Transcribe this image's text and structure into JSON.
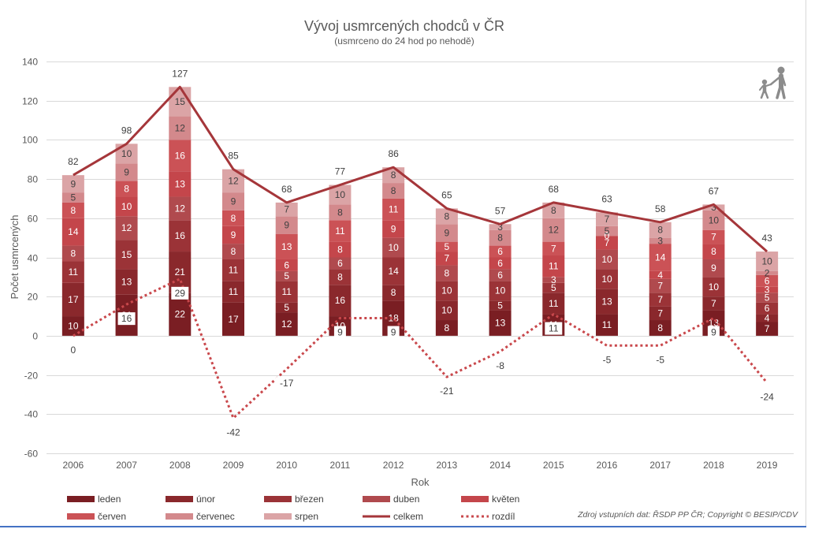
{
  "chart_data": {
    "type": "bar",
    "stacked": true,
    "title": "Vývoj usmrcených chodců v ČR",
    "subtitle": "(usmrceno do 24 hod po nehodě)",
    "xlabel": "Rok",
    "ylabel": "Počet usmrcených",
    "ylim": [
      -60,
      140
    ],
    "yticks": [
      -60,
      -40,
      -20,
      0,
      20,
      40,
      60,
      80,
      100,
      120,
      140
    ],
    "grid": true,
    "legend_position": "bottom",
    "data_labels": true,
    "categories": [
      "2006",
      "2007",
      "2008",
      "2009",
      "2010",
      "2011",
      "2012",
      "2013",
      "2014",
      "2015",
      "2016",
      "2017",
      "2018",
      "2019"
    ],
    "series": [
      {
        "name": "leden",
        "color": "#7a1e23",
        "values": [
          10,
          21,
          22,
          17,
          12,
          10,
          18,
          8,
          13,
          11,
          11,
          8,
          13,
          7
        ]
      },
      {
        "name": "únor",
        "color": "#8a282c",
        "values": [
          17,
          13,
          21,
          11,
          5,
          16,
          8,
          10,
          5,
          11,
          13,
          7,
          7,
          4
        ]
      },
      {
        "name": "březen",
        "color": "#9b3337",
        "values": [
          11,
          15,
          16,
          11,
          11,
          8,
          14,
          10,
          10,
          5,
          10,
          7,
          10,
          6
        ]
      },
      {
        "name": "duben",
        "color": "#b04a4e",
        "values": [
          8,
          12,
          12,
          8,
          5,
          6,
          10,
          8,
          6,
          3,
          10,
          7,
          9,
          5
        ]
      },
      {
        "name": "květen",
        "color": "#c4464b",
        "values": [
          14,
          10,
          13,
          9,
          6,
          8,
          9,
          7,
          6,
          11,
          7,
          4,
          8,
          3
        ]
      },
      {
        "name": "červen",
        "color": "#cb5256",
        "values": [
          8,
          8,
          16,
          8,
          13,
          11,
          11,
          5,
          6,
          7,
          0,
          14,
          7,
          6
        ]
      },
      {
        "name": "červenec",
        "color": "#d3898c",
        "values": [
          5,
          9,
          12,
          9,
          9,
          8,
          8,
          9,
          8,
          12,
          5,
          3,
          10,
          2
        ]
      },
      {
        "name": "srpen",
        "color": "#dba4a6",
        "values": [
          9,
          10,
          15,
          12,
          7,
          10,
          8,
          8,
          3,
          8,
          7,
          8,
          3,
          10
        ]
      }
    ],
    "lines": [
      {
        "name": "celkem",
        "style": "solid",
        "color": "#a5363a",
        "values": [
          82,
          98,
          127,
          85,
          68,
          77,
          86,
          65,
          57,
          68,
          63,
          58,
          67,
          43
        ]
      },
      {
        "name": "rozdíl",
        "style": "dotted",
        "color": "#c9484c",
        "values": [
          0,
          16,
          29,
          -42,
          -17,
          9,
          9,
          -21,
          -8,
          11,
          -5,
          -5,
          9,
          -24
        ]
      }
    ],
    "source": "Zdroj vstupních dat: ŘSDP PP ČR; Copyright © BESIP/CDV"
  },
  "decoration": {
    "icon": "pedestrians-icon",
    "icon_color": "#8c8c8c"
  },
  "frame": {
    "border_color": "#d9d9d9",
    "accent_color": "#4472c4"
  }
}
